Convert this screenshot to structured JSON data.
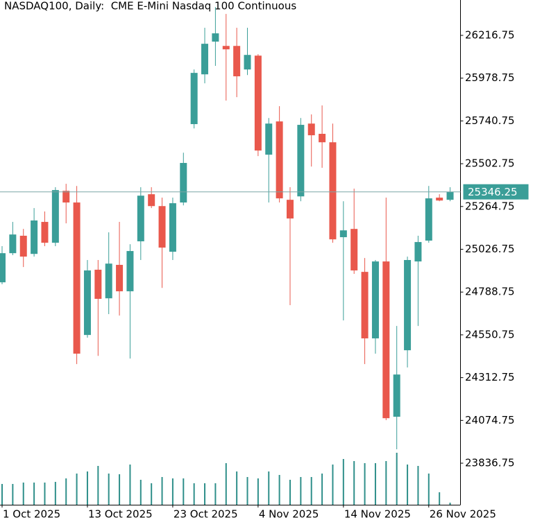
{
  "chart_data": {
    "type": "candlestick",
    "title": "NASDAQ100, Daily:  CME E-Mini Nasdaq 100 Continuous",
    "categories": [
      "1 Oct 2025",
      null,
      null,
      null,
      null,
      null,
      null,
      null,
      "13 Oct 2025",
      null,
      null,
      null,
      null,
      null,
      null,
      null,
      "23 Oct 2025",
      null,
      null,
      null,
      null,
      null,
      null,
      null,
      "4 Nov 2025",
      null,
      null,
      null,
      null,
      null,
      null,
      null,
      "14 Nov 2025",
      null,
      null,
      null,
      null,
      null,
      null,
      null,
      "26 Nov 2025",
      null,
      null
    ],
    "open": [
      24843,
      25005,
      25102,
      25001,
      25179,
      25063,
      25352,
      25287,
      24550,
      24913,
      24754,
      24940,
      24793,
      25071,
      25333,
      25267,
      25013,
      25287,
      25723,
      26000,
      26182,
      26158,
      26158,
      26027,
      26104,
      25553,
      25738,
      25302,
      25321,
      25726,
      25669,
      25622,
      25094,
      25140,
      24901,
      24531,
      24959,
      24095,
      24465,
      24959,
      25075,
      25314,
      25302
    ],
    "high": [
      25044,
      25179,
      25140,
      25256,
      25237,
      25372,
      25391,
      25379,
      24967,
      24967,
      25121,
      25179,
      25055,
      25372,
      25372,
      25314,
      25314,
      25564,
      26027,
      26259,
      26374,
      26336,
      26259,
      26259,
      26112,
      25757,
      25823,
      25372,
      25757,
      25777,
      25827,
      25726,
      25294,
      25364,
      24978,
      24967,
      25314,
      24600,
      24986,
      25102,
      25379,
      25333,
      25372
    ],
    "low": [
      24832,
      24994,
      24928,
      24986,
      25044,
      25044,
      25171,
      24388,
      24535,
      24434,
      24666,
      24658,
      24419,
      24967,
      25256,
      24812,
      24967,
      25271,
      25699,
      25950,
      26047,
      25854,
      25873,
      25996,
      25545,
      25287,
      25287,
      24716,
      25294,
      25487,
      25480,
      25063,
      24631,
      24890,
      24388,
      24446,
      24076,
      23914,
      24369,
      24600,
      25063,
      25294,
      25294
    ],
    "close": [
      25005,
      25109,
      24986,
      25187,
      25063,
      25356,
      25287,
      24446,
      24909,
      24751,
      24947,
      24793,
      25017,
      25325,
      25267,
      25036,
      25283,
      25507,
      26008,
      26170,
      26228,
      26139,
      25989,
      26108,
      25576,
      25726,
      25310,
      25198,
      25719,
      25661,
      25622,
      25082,
      25132,
      24909,
      24531,
      24959,
      24087,
      24330,
      24967,
      25067,
      25310,
      25298,
      25346
    ],
    "volume": [
      30,
      30,
      32,
      32,
      32,
      33,
      38,
      45,
      48,
      56,
      45,
      44,
      58,
      36,
      31,
      40,
      38,
      38,
      31,
      31,
      31,
      60,
      48,
      40,
      38,
      48,
      43,
      36,
      40,
      40,
      45,
      58,
      66,
      63,
      60,
      60,
      63,
      75,
      58,
      56,
      45,
      18,
      3
    ],
    "vlim": [
      0,
      100
    ],
    "up_color": "#3a9e98",
    "down_color": "#e9584c",
    "volume_color": "#2f8f8a",
    "ylim": [
      23605.5,
      26413.5
    ],
    "yticks": [
      26216.75,
      25978.75,
      25740.75,
      25502.75,
      25264.75,
      25026.75,
      24788.75,
      24550.75,
      24312.75,
      24074.75,
      23836.75
    ],
    "last_price": 25346.25,
    "last_price_color": "#3a9e98"
  }
}
